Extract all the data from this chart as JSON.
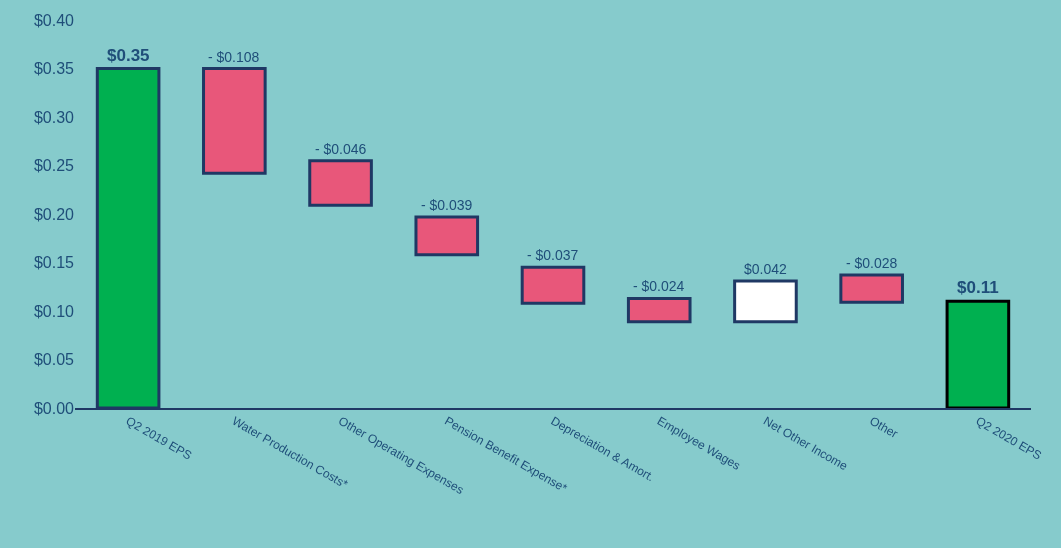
{
  "chart_data": {
    "type": "bar",
    "categories": [
      "Q2 2019 EPS",
      "Water Production Costs*",
      "Other Operating Expenses",
      "Pension Benefit Expense*",
      "Depreciation & Amort.",
      "Employee Wages",
      "Net Other Income",
      "Other",
      "Q2 2020 EPS"
    ],
    "values": [
      0.35,
      -0.108,
      -0.046,
      -0.039,
      -0.037,
      -0.024,
      0.042,
      -0.028,
      0.11
    ],
    "base": [
      0,
      0.35,
      0.255,
      0.197,
      0.145,
      0.113,
      0.089,
      0.137,
      0
    ],
    "colors": [
      "#00b050",
      "#e8577a",
      "#e8577a",
      "#e8577a",
      "#e8577a",
      "#e8577a",
      "#ffffff",
      "#e8577a",
      "#00b050"
    ],
    "value_labels": [
      "$0.35",
      "- $0.108",
      "- $0.046",
      "- $0.039",
      "- $0.037",
      "- $0.024",
      "$0.042",
      "- $0.028",
      "$0.11"
    ],
    "ylim": [
      0,
      0.4
    ],
    "yticks": [
      {
        "value": 0,
        "label": "$0.00"
      },
      {
        "value": 0.05,
        "label": "$0.05"
      },
      {
        "value": 0.1,
        "label": "$0.10"
      },
      {
        "value": 0.15,
        "label": "$0.15"
      },
      {
        "value": 0.2,
        "label": "$0.20"
      },
      {
        "value": 0.25,
        "label": "$0.25"
      },
      {
        "value": 0.3,
        "label": "$0.30"
      },
      {
        "value": 0.35,
        "label": "$0.35"
      },
      {
        "value": 0.4,
        "label": "$0.40"
      }
    ],
    "grid": false,
    "legend": false
  }
}
